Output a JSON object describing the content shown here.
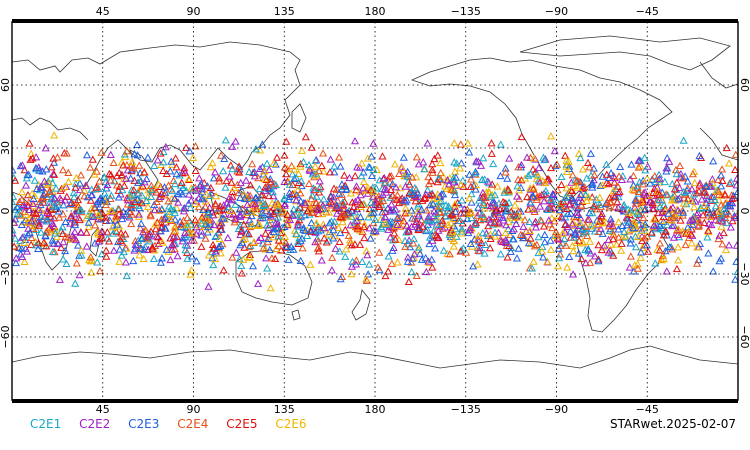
{
  "map": {
    "lon_ticks": [
      {
        "lon": 45,
        "label": "45"
      },
      {
        "lon": 90,
        "label": "90"
      },
      {
        "lon": 135,
        "label": "135"
      },
      {
        "lon": 180,
        "label": "180"
      },
      {
        "lon": 225,
        "label": "−135"
      },
      {
        "lon": 270,
        "label": "−90"
      },
      {
        "lon": 315,
        "label": "−45"
      }
    ],
    "lat_ticks": [
      {
        "lat": 60,
        "label": "60"
      },
      {
        "lat": 30,
        "label": "30"
      },
      {
        "lat": 0,
        "label": "0"
      },
      {
        "lat": -30,
        "label": "−30"
      },
      {
        "lat": -60,
        "label": "−60"
      }
    ],
    "lon_range": [
      0,
      360
    ],
    "lat_range": [
      -90,
      90
    ],
    "grid": "dotted",
    "marker": "triangle-open",
    "observation_lat_band": [
      -40,
      40
    ]
  },
  "legend": [
    {
      "label": "C2E1",
      "color": "#1aa7c7"
    },
    {
      "label": "C2E2",
      "color": "#a020c8"
    },
    {
      "label": "C2E3",
      "color": "#1f5fe0"
    },
    {
      "label": "C2E4",
      "color": "#e8501a"
    },
    {
      "label": "C2E5",
      "color": "#e01010"
    },
    {
      "label": "C2E6",
      "color": "#f0b400"
    }
  ],
  "stamp": "STARwet.2025-02-07"
}
